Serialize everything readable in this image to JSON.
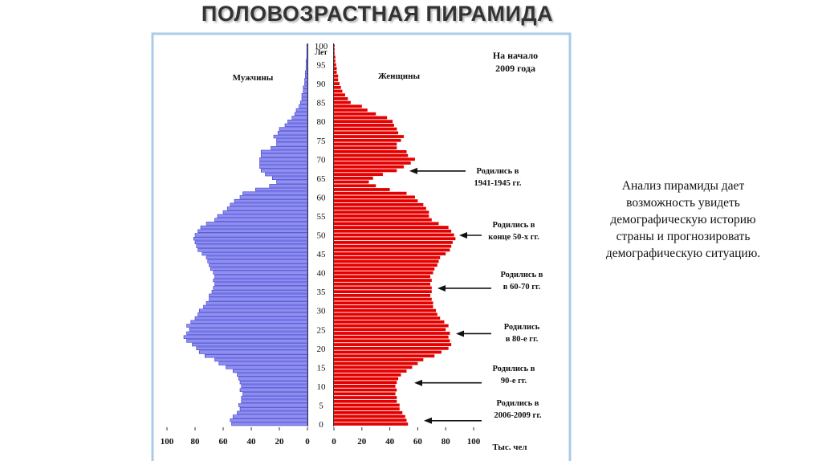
{
  "slide": {
    "title": "ПОЛОВОЗРАСТНАЯ ПИРАМИДА",
    "text": [
      "Анализ пирамиды дает",
      "возможность увидеть",
      "демографическую историю",
      "страны и прогнозировать",
      "демографическую ситуацию."
    ]
  },
  "chart_data": {
    "type": "pyramid",
    "note": [
      "На начало",
      "2009 года"
    ],
    "y_label": "Лет",
    "x_label": "Тыс. чел",
    "categories": [
      "0",
      null,
      null,
      null,
      null,
      "5",
      null,
      null,
      null,
      null,
      "10",
      null,
      null,
      null,
      null,
      "15",
      null,
      null,
      null,
      null,
      "20",
      null,
      null,
      null,
      null,
      "25",
      null,
      null,
      null,
      null,
      "30",
      null,
      null,
      null,
      null,
      "35",
      null,
      null,
      null,
      null,
      "40",
      null,
      null,
      null,
      null,
      "45",
      null,
      null,
      null,
      null,
      "50",
      null,
      null,
      null,
      null,
      "55",
      null,
      null,
      null,
      null,
      "60",
      null,
      null,
      null,
      null,
      "65",
      null,
      null,
      null,
      null,
      "70",
      null,
      null,
      null,
      null,
      "75",
      null,
      null,
      null,
      null,
      "80",
      null,
      null,
      null,
      null,
      "85",
      null,
      null,
      null,
      null,
      "90",
      null,
      null,
      null,
      null,
      "95",
      null,
      null,
      null,
      null,
      "100"
    ],
    "xlim": [
      0,
      100
    ],
    "xticks": [
      0,
      20,
      40,
      60,
      80,
      100
    ],
    "series": [
      {
        "name": "Мужчины",
        "color": "#8f8ff2",
        "values": [
          54,
          55,
          53,
          50,
          48,
          49,
          47,
          47,
          46,
          48,
          47,
          48,
          49,
          50,
          53,
          58,
          63,
          66,
          73,
          77,
          79,
          82,
          86,
          88,
          86,
          84,
          86,
          83,
          80,
          78,
          77,
          74,
          72,
          70,
          70,
          68,
          67,
          66,
          67,
          66,
          67,
          69,
          70,
          71,
          72,
          75,
          78,
          79,
          80,
          81,
          80,
          78,
          76,
          72,
          66,
          64,
          60,
          57,
          55,
          52,
          48,
          46,
          37,
          27,
          22,
          25,
          30,
          33,
          34,
          34,
          34,
          33,
          33,
          26,
          22,
          22,
          24,
          21,
          20,
          16,
          14,
          11,
          9,
          8,
          6,
          5,
          4,
          4,
          3,
          3,
          2,
          2,
          1.5,
          1.5,
          1,
          1,
          1,
          0.5,
          0.5,
          0.5,
          0.5
        ]
      },
      {
        "name": "Женщины",
        "color": "#e50000",
        "values": [
          53,
          52,
          51,
          49,
          47,
          47,
          45,
          45,
          44,
          45,
          44,
          45,
          46,
          48,
          52,
          56,
          60,
          64,
          72,
          77,
          82,
          84,
          83,
          82,
          83,
          80,
          82,
          79,
          76,
          74,
          73,
          71,
          71,
          70,
          69,
          70,
          70,
          69,
          70,
          69,
          71,
          72,
          74,
          75,
          76,
          80,
          83,
          84,
          85,
          87,
          86,
          84,
          82,
          75,
          70,
          68,
          68,
          66,
          64,
          60,
          58,
          52,
          40,
          30,
          25,
          28,
          35,
          45,
          50,
          55,
          58,
          53,
          52,
          45,
          45,
          48,
          50,
          46,
          45,
          43,
          42,
          38,
          30,
          24,
          20,
          12,
          10,
          8,
          6,
          5,
          4,
          3,
          3,
          2,
          2,
          1.5,
          1,
          1,
          0.5,
          0.5,
          0.5
        ]
      }
    ],
    "annotations": [
      [
        "Родились в",
        "1941-1945 гг."
      ],
      [
        "Родились в",
        "конце 50-х гг."
      ],
      [
        "Родились в",
        "в 60-70 гг."
      ],
      [
        "Родились",
        "в 80-е гг."
      ],
      [
        "Родились в",
        "90-е гг."
      ],
      [
        "Родились в",
        "2006-2009 гг."
      ]
    ]
  }
}
